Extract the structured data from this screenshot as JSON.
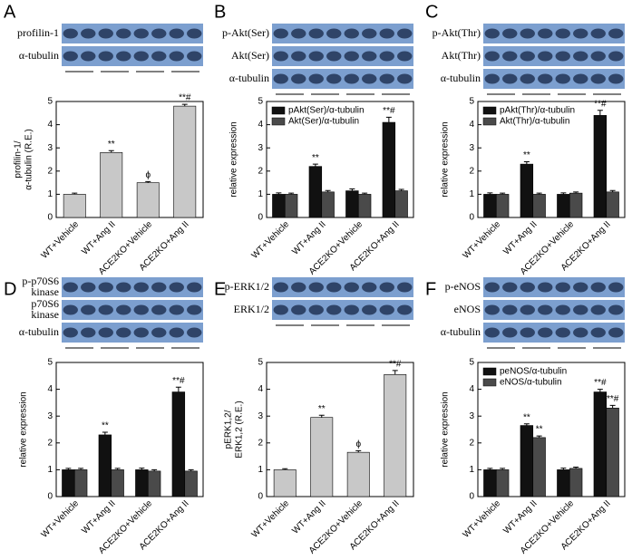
{
  "chart_data": [
    {
      "type": "bar",
      "panel": "A",
      "blot_labels": [
        [
          "profilin-1"
        ],
        [
          "α-tubulin"
        ]
      ],
      "ylabel": [
        "profilin-1/",
        "α-tubulin (R.E.)"
      ],
      "categories": [
        "WT+Vehicle",
        "WT+Ang II",
        "ACE2KO+Vehicle",
        "ACE2KO+Ang II"
      ],
      "series": [
        {
          "color": "#c8c8c8",
          "values": [
            1.0,
            2.8,
            1.5,
            4.8
          ],
          "errors": [
            0.05,
            0.08,
            0.05,
            0.08
          ],
          "annotations": [
            null,
            "**",
            "ϕ",
            "**#"
          ]
        }
      ],
      "ylim": [
        0,
        5
      ],
      "yticks": [
        0,
        1,
        2,
        3,
        4,
        5
      ]
    },
    {
      "type": "bar",
      "panel": "B",
      "blot_labels": [
        [
          "p-Akt(Ser)"
        ],
        [
          "Akt(Ser)"
        ],
        [
          "α-tubulin"
        ]
      ],
      "ylabel": [
        "relative expression"
      ],
      "categories": [
        "WT+Vehicle",
        "WT+Ang II",
        "ACE2KO+Vehicle",
        "ACE2KO+Ang II"
      ],
      "series": [
        {
          "name": "pAkt(Ser)/α-tubulin",
          "color": "#111111",
          "values": [
            1.0,
            2.2,
            1.15,
            4.1
          ],
          "errors": [
            0.06,
            0.1,
            0.08,
            0.22
          ],
          "annotations": [
            null,
            "**",
            null,
            "**#"
          ]
        },
        {
          "name": "Akt(Ser)/α-tubulin",
          "color": "#4a4a4a",
          "values": [
            1.0,
            1.1,
            1.0,
            1.15
          ],
          "errors": [
            0.05,
            0.06,
            0.05,
            0.06
          ],
          "annotations": [
            null,
            null,
            null,
            null
          ]
        }
      ],
      "ylim": [
        0,
        5
      ],
      "yticks": [
        0,
        1,
        2,
        3,
        4,
        5
      ]
    },
    {
      "type": "bar",
      "panel": "C",
      "blot_labels": [
        [
          "p-Akt(Thr)"
        ],
        [
          "Akt(Thr)"
        ],
        [
          "α-tubulin"
        ]
      ],
      "ylabel": [
        "relative expression"
      ],
      "categories": [
        "WT+Vehicle",
        "WT+Ang II",
        "ACE2KO+Vehicle",
        "ACE2KO+Ang II"
      ],
      "series": [
        {
          "name": "pAkt(Thr)/α-tubulin",
          "color": "#111111",
          "values": [
            1.0,
            2.3,
            1.0,
            4.4
          ],
          "errors": [
            0.06,
            0.1,
            0.06,
            0.22
          ],
          "annotations": [
            null,
            "**",
            null,
            "**#"
          ]
        },
        {
          "name": "Akt(Thr)/α-tubulin",
          "color": "#4a4a4a",
          "values": [
            1.0,
            1.0,
            1.05,
            1.1
          ],
          "errors": [
            0.05,
            0.05,
            0.05,
            0.06
          ],
          "annotations": [
            null,
            null,
            null,
            null
          ]
        }
      ],
      "ylim": [
        0,
        5
      ],
      "yticks": [
        0,
        1,
        2,
        3,
        4,
        5
      ]
    },
    {
      "type": "bar",
      "panel": "D",
      "blot_labels": [
        [
          "p-p70S6",
          "kinase"
        ],
        [
          "p70S6",
          "kinase"
        ],
        [
          "α-tubulin"
        ]
      ],
      "ylabel": [
        "relative expression"
      ],
      "categories": [
        "WT+Vehicle",
        "WT+Ang II",
        "ACE2KO+Vehicle",
        "ACE2KO+Ang II"
      ],
      "series": [
        {
          "color": "#111111",
          "values": [
            1.0,
            2.3,
            1.0,
            3.9
          ],
          "errors": [
            0.05,
            0.1,
            0.06,
            0.18
          ],
          "annotations": [
            null,
            "**",
            null,
            "**#"
          ]
        },
        {
          "color": "#4a4a4a",
          "values": [
            1.0,
            1.0,
            0.95,
            0.95
          ],
          "errors": [
            0.05,
            0.05,
            0.05,
            0.05
          ],
          "annotations": [
            null,
            null,
            null,
            null
          ]
        }
      ],
      "ylim": [
        0,
        5
      ],
      "yticks": [
        0,
        1,
        2,
        3,
        4,
        5
      ]
    },
    {
      "type": "bar",
      "panel": "E",
      "blot_labels": [
        [
          "p-ERK1/2"
        ],
        [
          "ERK1/2"
        ]
      ],
      "ylabel": [
        "pERK1,2/",
        "ERK1,2 (R.E.)"
      ],
      "categories": [
        "WT+Vehicle",
        "WT+Ang II",
        "ACE2KO+Vehicle",
        "ACE2KO+Ang II"
      ],
      "series": [
        {
          "color": "#c8c8c8",
          "values": [
            1.0,
            2.95,
            1.65,
            4.55
          ],
          "errors": [
            0.04,
            0.08,
            0.06,
            0.15
          ],
          "annotations": [
            null,
            "**",
            "ϕ",
            "**#"
          ]
        }
      ],
      "ylim": [
        0,
        5
      ],
      "yticks": [
        0,
        1,
        2,
        3,
        4,
        5
      ]
    },
    {
      "type": "bar",
      "panel": "F",
      "blot_labels": [
        [
          "p-eNOS"
        ],
        [
          "eNOS"
        ],
        [
          "α-tubulin"
        ]
      ],
      "ylabel": [
        "relative expression"
      ],
      "categories": [
        "WT+Vehicle",
        "WT+Ang II",
        "ACE2KO+Vehicle",
        "ACE2KO+Ang II"
      ],
      "series": [
        {
          "name": "peNOS/α-tubulin",
          "color": "#111111",
          "values": [
            1.0,
            2.65,
            1.0,
            3.9
          ],
          "errors": [
            0.05,
            0.06,
            0.06,
            0.1
          ],
          "annotations": [
            null,
            "**",
            null,
            "**#"
          ]
        },
        {
          "name": "eNOS/α-tubulin",
          "color": "#4a4a4a",
          "values": [
            1.0,
            2.2,
            1.05,
            3.3
          ],
          "errors": [
            0.05,
            0.06,
            0.05,
            0.1
          ],
          "annotations": [
            null,
            "**",
            null,
            "**#"
          ]
        }
      ],
      "ylim": [
        0,
        5
      ],
      "yticks": [
        0,
        1,
        2,
        3,
        4,
        5
      ]
    }
  ]
}
